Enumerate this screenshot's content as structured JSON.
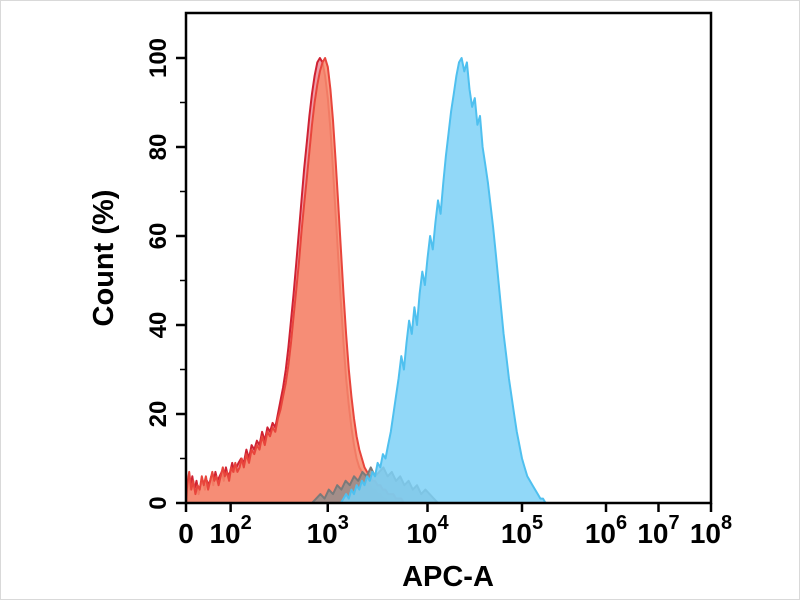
{
  "chart_data": {
    "type": "area",
    "title": "",
    "xlabel": "APC-A",
    "ylabel": "Count (%)",
    "x_scale": "biexponential-log",
    "ylim": [
      0,
      100
    ],
    "y_ticks": [
      0,
      20,
      40,
      60,
      80,
      100
    ],
    "y_minor_ticks": [
      10,
      30,
      50,
      70,
      90
    ],
    "x_ticks": [
      {
        "label": "0",
        "pos": 0.0
      },
      {
        "base": "10",
        "exp": "2",
        "pos": 0.085
      },
      {
        "base": "10",
        "exp": "3",
        "pos": 0.27
      },
      {
        "base": "10",
        "exp": "4",
        "pos": 0.46
      },
      {
        "base": "10",
        "exp": "5",
        "pos": 0.64
      },
      {
        "base": "10",
        "exp": "6",
        "pos": 0.8
      },
      {
        "base": "10",
        "exp": "7",
        "pos": 0.9
      },
      {
        "base": "10",
        "exp": "8",
        "pos": 1.0
      }
    ],
    "series": [
      {
        "name": "crimson-series",
        "fill": "#e03a4e",
        "fill_opacity": 0.5,
        "outline": "#cf2233",
        "points": [
          [
            0.0,
            0
          ],
          [
            0.004,
            5
          ],
          [
            0.008,
            3
          ],
          [
            0.012,
            6
          ],
          [
            0.016,
            3
          ],
          [
            0.02,
            5
          ],
          [
            0.024,
            2
          ],
          [
            0.028,
            4
          ],
          [
            0.032,
            5
          ],
          [
            0.036,
            3
          ],
          [
            0.04,
            5
          ],
          [
            0.044,
            4
          ],
          [
            0.048,
            6
          ],
          [
            0.052,
            4
          ],
          [
            0.056,
            7
          ],
          [
            0.06,
            5
          ],
          [
            0.064,
            6
          ],
          [
            0.068,
            7
          ],
          [
            0.072,
            5
          ],
          [
            0.076,
            8
          ],
          [
            0.08,
            6
          ],
          [
            0.084,
            7
          ],
          [
            0.088,
            9
          ],
          [
            0.092,
            7
          ],
          [
            0.096,
            8
          ],
          [
            0.1,
            9
          ],
          [
            0.105,
            10
          ],
          [
            0.11,
            9
          ],
          [
            0.115,
            12
          ],
          [
            0.12,
            10
          ],
          [
            0.125,
            13
          ],
          [
            0.13,
            12
          ],
          [
            0.135,
            14
          ],
          [
            0.14,
            13
          ],
          [
            0.145,
            16
          ],
          [
            0.15,
            14
          ],
          [
            0.155,
            17
          ],
          [
            0.16,
            16
          ],
          [
            0.165,
            18
          ],
          [
            0.17,
            17
          ],
          [
            0.175,
            20
          ],
          [
            0.18,
            23
          ],
          [
            0.185,
            26
          ],
          [
            0.19,
            30
          ],
          [
            0.195,
            35
          ],
          [
            0.2,
            41
          ],
          [
            0.205,
            47
          ],
          [
            0.21,
            54
          ],
          [
            0.215,
            61
          ],
          [
            0.22,
            68
          ],
          [
            0.225,
            75
          ],
          [
            0.23,
            81
          ],
          [
            0.235,
            87
          ],
          [
            0.24,
            92
          ],
          [
            0.245,
            96
          ],
          [
            0.25,
            99
          ],
          [
            0.255,
            100
          ],
          [
            0.26,
            99
          ],
          [
            0.265,
            96
          ],
          [
            0.27,
            91
          ],
          [
            0.275,
            84
          ],
          [
            0.28,
            75
          ],
          [
            0.285,
            65
          ],
          [
            0.29,
            55
          ],
          [
            0.295,
            45
          ],
          [
            0.3,
            36
          ],
          [
            0.305,
            28
          ],
          [
            0.31,
            22
          ],
          [
            0.315,
            17
          ],
          [
            0.32,
            13
          ],
          [
            0.325,
            10
          ],
          [
            0.33,
            8
          ],
          [
            0.335,
            7
          ],
          [
            0.34,
            6
          ],
          [
            0.345,
            5
          ],
          [
            0.35,
            4
          ],
          [
            0.355,
            3
          ],
          [
            0.36,
            3
          ],
          [
            0.365,
            2
          ],
          [
            0.37,
            2
          ],
          [
            0.375,
            1
          ],
          [
            0.38,
            1
          ],
          [
            0.385,
            0
          ]
        ]
      },
      {
        "name": "salmon-series",
        "fill": "#f78b6d",
        "fill_opacity": 0.85,
        "outline": "#e8453c",
        "points": [
          [
            0.0,
            0
          ],
          [
            0.002,
            4
          ],
          [
            0.006,
            7
          ],
          [
            0.01,
            3
          ],
          [
            0.014,
            5
          ],
          [
            0.018,
            2
          ],
          [
            0.022,
            4
          ],
          [
            0.026,
            3
          ],
          [
            0.03,
            6
          ],
          [
            0.034,
            4
          ],
          [
            0.038,
            6
          ],
          [
            0.042,
            3
          ],
          [
            0.046,
            5
          ],
          [
            0.05,
            7
          ],
          [
            0.054,
            5
          ],
          [
            0.058,
            6
          ],
          [
            0.062,
            4
          ],
          [
            0.066,
            6
          ],
          [
            0.07,
            8
          ],
          [
            0.074,
            6
          ],
          [
            0.078,
            7
          ],
          [
            0.082,
            5
          ],
          [
            0.086,
            8
          ],
          [
            0.09,
            7
          ],
          [
            0.094,
            9
          ],
          [
            0.098,
            7
          ],
          [
            0.102,
            8
          ],
          [
            0.106,
            10
          ],
          [
            0.11,
            8
          ],
          [
            0.115,
            11
          ],
          [
            0.12,
            9
          ],
          [
            0.125,
            12
          ],
          [
            0.13,
            11
          ],
          [
            0.135,
            13
          ],
          [
            0.14,
            12
          ],
          [
            0.145,
            15
          ],
          [
            0.15,
            13
          ],
          [
            0.155,
            16
          ],
          [
            0.16,
            15
          ],
          [
            0.165,
            17
          ],
          [
            0.17,
            16
          ],
          [
            0.175,
            19
          ],
          [
            0.18,
            21
          ],
          [
            0.185,
            24
          ],
          [
            0.19,
            27
          ],
          [
            0.195,
            31
          ],
          [
            0.2,
            36
          ],
          [
            0.205,
            42
          ],
          [
            0.21,
            48
          ],
          [
            0.215,
            54
          ],
          [
            0.22,
            61
          ],
          [
            0.225,
            67
          ],
          [
            0.23,
            73
          ],
          [
            0.235,
            79
          ],
          [
            0.24,
            85
          ],
          [
            0.245,
            90
          ],
          [
            0.25,
            94
          ],
          [
            0.255,
            97
          ],
          [
            0.26,
            99
          ],
          [
            0.265,
            100
          ],
          [
            0.27,
            98
          ],
          [
            0.275,
            93
          ],
          [
            0.28,
            86
          ],
          [
            0.285,
            77
          ],
          [
            0.29,
            67
          ],
          [
            0.295,
            57
          ],
          [
            0.3,
            47
          ],
          [
            0.305,
            38
          ],
          [
            0.31,
            30
          ],
          [
            0.315,
            24
          ],
          [
            0.32,
            19
          ],
          [
            0.325,
            15
          ],
          [
            0.33,
            12
          ],
          [
            0.335,
            10
          ],
          [
            0.34,
            8
          ],
          [
            0.345,
            7
          ],
          [
            0.35,
            6
          ],
          [
            0.355,
            5
          ],
          [
            0.36,
            5
          ],
          [
            0.365,
            4
          ],
          [
            0.37,
            4
          ],
          [
            0.375,
            3
          ],
          [
            0.38,
            3
          ],
          [
            0.385,
            2
          ],
          [
            0.39,
            2
          ],
          [
            0.395,
            2
          ],
          [
            0.4,
            1
          ],
          [
            0.405,
            1
          ],
          [
            0.41,
            1
          ],
          [
            0.415,
            0
          ]
        ]
      },
      {
        "name": "gray-series",
        "fill": "#8f8f8f",
        "fill_opacity": 0.8,
        "outline": "#7a7a7a",
        "points": [
          [
            0.24,
            0
          ],
          [
            0.248,
            1
          ],
          [
            0.256,
            2
          ],
          [
            0.264,
            1
          ],
          [
            0.272,
            3
          ],
          [
            0.28,
            2
          ],
          [
            0.288,
            4
          ],
          [
            0.296,
            3
          ],
          [
            0.304,
            5
          ],
          [
            0.312,
            4
          ],
          [
            0.32,
            6
          ],
          [
            0.328,
            5
          ],
          [
            0.336,
            7
          ],
          [
            0.344,
            6
          ],
          [
            0.352,
            8
          ],
          [
            0.36,
            6
          ],
          [
            0.368,
            7
          ],
          [
            0.376,
            8
          ],
          [
            0.384,
            6
          ],
          [
            0.392,
            7
          ],
          [
            0.4,
            5
          ],
          [
            0.408,
            6
          ],
          [
            0.416,
            4
          ],
          [
            0.424,
            5
          ],
          [
            0.432,
            3
          ],
          [
            0.44,
            4
          ],
          [
            0.448,
            2
          ],
          [
            0.456,
            3
          ],
          [
            0.464,
            2
          ],
          [
            0.472,
            1
          ],
          [
            0.48,
            0
          ]
        ]
      },
      {
        "name": "blue-series",
        "fill": "#7ed1f7",
        "fill_opacity": 0.85,
        "outline": "#4fc0ef",
        "points": [
          [
            0.295,
            0
          ],
          [
            0.3,
            1
          ],
          [
            0.305,
            2
          ],
          [
            0.31,
            1
          ],
          [
            0.315,
            3
          ],
          [
            0.32,
            2
          ],
          [
            0.325,
            4
          ],
          [
            0.33,
            3
          ],
          [
            0.335,
            5
          ],
          [
            0.34,
            4
          ],
          [
            0.345,
            6
          ],
          [
            0.35,
            5
          ],
          [
            0.355,
            7
          ],
          [
            0.36,
            6
          ],
          [
            0.365,
            9
          ],
          [
            0.37,
            8
          ],
          [
            0.375,
            11
          ],
          [
            0.38,
            10
          ],
          [
            0.385,
            13
          ],
          [
            0.39,
            16
          ],
          [
            0.395,
            20
          ],
          [
            0.4,
            24
          ],
          [
            0.405,
            28
          ],
          [
            0.41,
            33
          ],
          [
            0.415,
            30
          ],
          [
            0.42,
            36
          ],
          [
            0.425,
            41
          ],
          [
            0.43,
            38
          ],
          [
            0.435,
            44
          ],
          [
            0.44,
            40
          ],
          [
            0.445,
            47
          ],
          [
            0.45,
            52
          ],
          [
            0.455,
            49
          ],
          [
            0.46,
            55
          ],
          [
            0.465,
            60
          ],
          [
            0.47,
            57
          ],
          [
            0.475,
            63
          ],
          [
            0.48,
            68
          ],
          [
            0.485,
            65
          ],
          [
            0.49,
            72
          ],
          [
            0.495,
            78
          ],
          [
            0.5,
            83
          ],
          [
            0.505,
            88
          ],
          [
            0.51,
            92
          ],
          [
            0.515,
            96
          ],
          [
            0.52,
            99
          ],
          [
            0.525,
            100
          ],
          [
            0.53,
            97
          ],
          [
            0.535,
            99
          ],
          [
            0.54,
            93
          ],
          [
            0.545,
            89
          ],
          [
            0.55,
            91
          ],
          [
            0.555,
            85
          ],
          [
            0.56,
            87
          ],
          [
            0.565,
            80
          ],
          [
            0.57,
            76
          ],
          [
            0.575,
            72
          ],
          [
            0.58,
            67
          ],
          [
            0.585,
            62
          ],
          [
            0.59,
            56
          ],
          [
            0.595,
            50
          ],
          [
            0.6,
            44
          ],
          [
            0.605,
            38
          ],
          [
            0.61,
            33
          ],
          [
            0.615,
            28
          ],
          [
            0.62,
            24
          ],
          [
            0.625,
            20
          ],
          [
            0.63,
            16
          ],
          [
            0.635,
            13
          ],
          [
            0.64,
            10
          ],
          [
            0.645,
            8
          ],
          [
            0.65,
            6
          ],
          [
            0.655,
            5
          ],
          [
            0.66,
            4
          ],
          [
            0.665,
            3
          ],
          [
            0.67,
            2
          ],
          [
            0.675,
            1
          ],
          [
            0.68,
            1
          ],
          [
            0.685,
            0
          ]
        ]
      }
    ]
  }
}
